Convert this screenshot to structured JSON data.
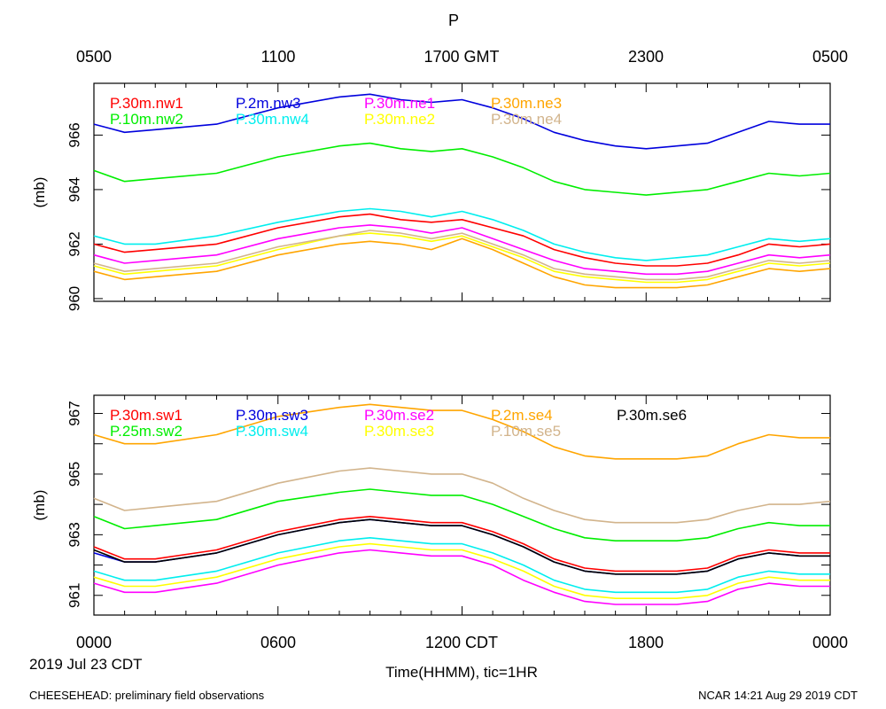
{
  "figure": {
    "title": "P",
    "top_axis_ticks": [
      "0500",
      "1100",
      "1700 GMT",
      "2300",
      "0500"
    ],
    "bottom_axis_ticks": [
      "0000",
      "0600",
      "1200 CDT",
      "1800",
      "0000"
    ],
    "date_label": "2019 Jul 23 CDT",
    "xlabel": "Time(HHMM), tic=1HR",
    "footer_left": "CHEESEHEAD: preliminary field observations",
    "footer_right": "NCAR 14:21 Aug 29 2019 CDT"
  },
  "chart_data": [
    {
      "type": "line",
      "panel": "top",
      "ylabel": "(mb)",
      "xlim": [
        0,
        24
      ],
      "ylim": [
        959.9,
        967.9
      ],
      "yticks": [
        960,
        962,
        964,
        966
      ],
      "ytick_labels": [
        "960",
        "962",
        "964",
        "966"
      ],
      "grid": false,
      "legend": "top",
      "series": [
        {
          "name": "P.30m.nw1",
          "color": "#ff0000",
          "x": [
            0,
            1,
            2,
            4,
            6,
            8,
            9,
            10,
            11,
            12,
            13,
            14,
            15,
            16,
            17,
            18,
            19,
            20,
            21,
            22,
            23,
            24
          ],
          "y": [
            962.0,
            961.7,
            961.8,
            962.0,
            962.6,
            963.0,
            963.1,
            962.9,
            962.8,
            962.9,
            962.6,
            962.3,
            961.8,
            961.5,
            961.3,
            961.2,
            961.2,
            961.3,
            961.6,
            962.0,
            961.9,
            962.0
          ]
        },
        {
          "name": "P.10m.nw2",
          "color": "#00ee00",
          "x": [
            0,
            1,
            2,
            4,
            6,
            8,
            9,
            10,
            11,
            12,
            13,
            14,
            15,
            16,
            17,
            18,
            19,
            20,
            21,
            22,
            23,
            24
          ],
          "y": [
            964.7,
            964.3,
            964.4,
            964.6,
            965.2,
            965.6,
            965.7,
            965.5,
            965.4,
            965.5,
            965.2,
            964.8,
            964.3,
            964.0,
            963.9,
            963.8,
            963.9,
            964.0,
            964.3,
            964.6,
            964.5,
            964.6
          ]
        },
        {
          "name": "P.2m.nw3",
          "color": "#0000dd",
          "x": [
            0,
            1,
            2,
            4,
            6,
            8,
            9,
            10,
            11,
            12,
            13,
            14,
            15,
            16,
            17,
            18,
            19,
            20,
            21,
            22,
            23,
            24
          ],
          "y": [
            966.4,
            966.1,
            966.2,
            966.4,
            967.0,
            967.4,
            967.5,
            967.3,
            967.2,
            967.3,
            967.0,
            966.6,
            966.1,
            965.8,
            965.6,
            965.5,
            965.6,
            965.7,
            966.1,
            966.5,
            966.4,
            966.4
          ]
        },
        {
          "name": "P.30m.nw4",
          "color": "#00eeee",
          "x": [
            0,
            1,
            2,
            4,
            6,
            8,
            9,
            10,
            11,
            12,
            13,
            14,
            15,
            16,
            17,
            18,
            19,
            20,
            21,
            22,
            23,
            24
          ],
          "y": [
            962.3,
            962.0,
            962.0,
            962.3,
            962.8,
            963.2,
            963.3,
            963.2,
            963.0,
            963.2,
            962.9,
            962.5,
            962.0,
            961.7,
            961.5,
            961.4,
            961.5,
            961.6,
            961.9,
            962.2,
            962.1,
            962.2
          ]
        },
        {
          "name": "P.30m.ne1",
          "color": "#ff00ff",
          "x": [
            0,
            1,
            2,
            4,
            6,
            8,
            9,
            10,
            11,
            12,
            13,
            14,
            15,
            16,
            17,
            18,
            19,
            20,
            21,
            22,
            23,
            24
          ],
          "y": [
            961.6,
            961.3,
            961.4,
            961.6,
            962.2,
            962.6,
            962.7,
            962.6,
            962.4,
            962.6,
            962.2,
            961.8,
            961.4,
            961.1,
            961.0,
            960.9,
            960.9,
            961.0,
            961.3,
            961.6,
            961.5,
            961.6
          ]
        },
        {
          "name": "P.30m.ne2",
          "color": "#ffff00",
          "x": [
            0,
            1,
            2,
            4,
            6,
            8,
            9,
            10,
            11,
            12,
            13,
            14,
            15,
            16,
            17,
            18,
            19,
            20,
            21,
            22,
            23,
            24
          ],
          "y": [
            961.2,
            960.9,
            961.0,
            961.2,
            961.8,
            962.3,
            962.4,
            962.3,
            962.1,
            962.3,
            961.9,
            961.5,
            961.0,
            960.8,
            960.7,
            960.6,
            960.6,
            960.7,
            961.0,
            961.3,
            961.2,
            961.3
          ]
        },
        {
          "name": "P.30m.ne3",
          "color": "#ffa500",
          "x": [
            0,
            1,
            2,
            4,
            6,
            8,
            9,
            10,
            11,
            12,
            13,
            14,
            15,
            16,
            17,
            18,
            19,
            20,
            21,
            22,
            23,
            24
          ],
          "y": [
            961.0,
            960.7,
            960.8,
            961.0,
            961.6,
            962.0,
            962.1,
            962.0,
            961.8,
            962.2,
            961.8,
            961.3,
            960.8,
            960.5,
            960.4,
            960.4,
            960.4,
            960.5,
            960.8,
            961.1,
            961.0,
            961.1
          ]
        },
        {
          "name": "P.30m.ne4",
          "color": "#d2b48c",
          "x": [
            0,
            1,
            2,
            4,
            6,
            8,
            9,
            10,
            11,
            12,
            13,
            14,
            15,
            16,
            17,
            18,
            19,
            20,
            21,
            22,
            23,
            24
          ],
          "y": [
            961.3,
            961.0,
            961.1,
            961.3,
            961.9,
            962.3,
            962.5,
            962.4,
            962.2,
            962.4,
            962.0,
            961.6,
            961.1,
            960.9,
            960.8,
            960.7,
            960.7,
            960.8,
            961.1,
            961.4,
            961.3,
            961.4
          ]
        }
      ]
    },
    {
      "type": "line",
      "panel": "bottom",
      "ylabel": "(mb)",
      "xlim": [
        0,
        24
      ],
      "ylim": [
        960.35,
        967.6
      ],
      "yticks": [
        961,
        962,
        963,
        964,
        965,
        966,
        967
      ],
      "ytick_labels": [
        "961",
        "",
        "963",
        "",
        "965",
        "",
        "967"
      ],
      "grid": false,
      "legend": "top",
      "series": [
        {
          "name": "P.30m.sw1",
          "color": "#ff0000",
          "x": [
            0,
            1,
            2,
            4,
            6,
            8,
            9,
            10,
            11,
            12,
            13,
            14,
            15,
            16,
            17,
            18,
            19,
            20,
            21,
            22,
            23,
            24
          ],
          "y": [
            962.6,
            962.2,
            962.2,
            962.5,
            963.1,
            963.5,
            963.6,
            963.5,
            963.4,
            963.4,
            963.1,
            962.7,
            962.2,
            961.9,
            961.8,
            961.8,
            961.8,
            961.9,
            962.3,
            962.5,
            962.4,
            962.4
          ]
        },
        {
          "name": "P.25m.sw2",
          "color": "#00ee00",
          "x": [
            0,
            1,
            2,
            4,
            6,
            8,
            9,
            10,
            11,
            12,
            13,
            14,
            15,
            16,
            17,
            18,
            19,
            20,
            21,
            22,
            23,
            24
          ],
          "y": [
            963.6,
            963.2,
            963.3,
            963.5,
            964.1,
            964.4,
            964.5,
            964.4,
            964.3,
            964.3,
            964.0,
            963.6,
            963.2,
            962.9,
            962.8,
            962.8,
            962.8,
            962.9,
            963.2,
            963.4,
            963.3,
            963.3
          ]
        },
        {
          "name": "P.30m.sw3",
          "color": "#0000dd",
          "x": [
            0,
            1,
            2,
            4,
            6,
            8,
            9,
            10,
            11,
            12,
            13,
            14,
            15,
            16,
            17,
            18,
            19,
            20,
            21,
            22,
            23,
            24
          ],
          "y": [
            962.4,
            962.1,
            962.1,
            962.4,
            963.0,
            963.4,
            963.5,
            963.4,
            963.3,
            963.3,
            963.0,
            962.6,
            962.1,
            961.8,
            961.7,
            961.7,
            961.7,
            961.8,
            962.2,
            962.4,
            962.3,
            962.3
          ]
        },
        {
          "name": "P.30m.sw4",
          "color": "#00eeee",
          "x": [
            0,
            1,
            2,
            4,
            6,
            8,
            9,
            10,
            11,
            12,
            13,
            14,
            15,
            16,
            17,
            18,
            19,
            20,
            21,
            22,
            23,
            24
          ],
          "y": [
            961.8,
            961.5,
            961.5,
            961.8,
            962.4,
            962.8,
            962.9,
            962.8,
            962.7,
            962.7,
            962.4,
            962.0,
            961.5,
            961.2,
            961.1,
            961.1,
            961.1,
            961.2,
            961.6,
            961.8,
            961.7,
            961.7
          ]
        },
        {
          "name": "P.30m.se2",
          "color": "#ff00ff",
          "x": [
            0,
            1,
            2,
            4,
            6,
            8,
            9,
            10,
            11,
            12,
            13,
            14,
            15,
            16,
            17,
            18,
            19,
            20,
            21,
            22,
            23,
            24
          ],
          "y": [
            961.4,
            961.1,
            961.1,
            961.4,
            962.0,
            962.4,
            962.5,
            962.4,
            962.3,
            962.3,
            962.0,
            961.5,
            961.1,
            960.8,
            960.7,
            960.7,
            960.7,
            960.8,
            961.2,
            961.4,
            961.3,
            961.3
          ]
        },
        {
          "name": "P.30m.se3",
          "color": "#ffff00",
          "x": [
            0,
            1,
            2,
            4,
            6,
            8,
            9,
            10,
            11,
            12,
            13,
            14,
            15,
            16,
            17,
            18,
            19,
            20,
            21,
            22,
            23,
            24
          ],
          "y": [
            961.6,
            961.3,
            961.3,
            961.6,
            962.2,
            962.6,
            962.7,
            962.6,
            962.5,
            962.5,
            962.2,
            961.8,
            961.3,
            961.0,
            960.9,
            960.9,
            960.9,
            961.0,
            961.4,
            961.6,
            961.5,
            961.5
          ]
        },
        {
          "name": "P.2m.se4",
          "color": "#ffa500",
          "x": [
            0,
            1,
            2,
            4,
            6,
            8,
            9,
            10,
            11,
            12,
            13,
            14,
            15,
            16,
            17,
            18,
            19,
            20,
            21,
            22,
            23,
            24
          ],
          "y": [
            966.3,
            966.0,
            966.0,
            966.3,
            966.9,
            967.2,
            967.3,
            967.2,
            967.1,
            967.1,
            966.8,
            966.4,
            965.9,
            965.6,
            965.5,
            965.5,
            965.5,
            965.6,
            966.0,
            966.3,
            966.2,
            966.2
          ]
        },
        {
          "name": "P.10m.se5",
          "color": "#d2b48c",
          "x": [
            0,
            1,
            2,
            4,
            6,
            8,
            9,
            10,
            11,
            12,
            13,
            14,
            15,
            16,
            17,
            18,
            19,
            20,
            21,
            22,
            23,
            24
          ],
          "y": [
            964.2,
            963.8,
            963.9,
            964.1,
            964.7,
            965.1,
            965.2,
            965.1,
            965.0,
            965.0,
            964.7,
            964.2,
            963.8,
            963.5,
            963.4,
            963.4,
            963.4,
            963.5,
            963.8,
            964.0,
            964.0,
            964.1
          ]
        },
        {
          "name": "P.30m.se6",
          "color": "#000000",
          "x": [
            0,
            1,
            2,
            4,
            6,
            8,
            9,
            10,
            11,
            12,
            13,
            14,
            15,
            16,
            17,
            18,
            19,
            20,
            21,
            22,
            23,
            24
          ],
          "y": [
            962.5,
            962.1,
            962.1,
            962.4,
            963.0,
            963.4,
            963.5,
            963.4,
            963.3,
            963.3,
            963.0,
            962.6,
            962.1,
            961.8,
            961.7,
            961.7,
            961.7,
            961.8,
            962.2,
            962.4,
            962.3,
            962.3
          ]
        }
      ]
    }
  ]
}
